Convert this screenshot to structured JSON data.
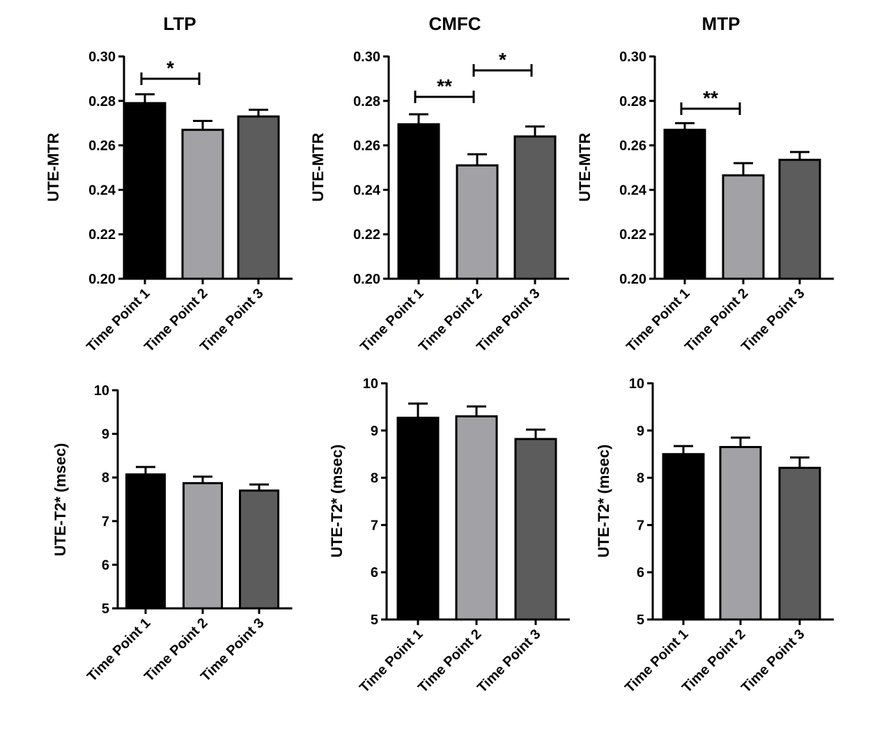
{
  "colors": {
    "bar1": "#000000",
    "bar2": "#a2a2a6",
    "bar3": "#5c5c5c"
  },
  "chart_data": [
    {
      "type": "bar",
      "title": "LTP",
      "ylabel": "UTE-MTR",
      "xlabel": "",
      "categories": [
        "Time Point 1",
        "Time Point 2",
        "Time Point 3"
      ],
      "values": [
        0.279,
        0.267,
        0.273
      ],
      "errors": [
        0.004,
        0.004,
        0.003
      ],
      "ylim": [
        0.2,
        0.3
      ],
      "yticks": [
        "0.20",
        "0.22",
        "0.24",
        "0.26",
        "0.28",
        "0.30"
      ],
      "significance": [
        {
          "from": 0,
          "to": 1,
          "label": "*"
        }
      ]
    },
    {
      "type": "bar",
      "title": "CMFC",
      "ylabel": "UTE-MTR",
      "xlabel": "",
      "categories": [
        "Time Point 1",
        "Time Point 2",
        "Time Point 3"
      ],
      "values": [
        0.2695,
        0.251,
        0.264
      ],
      "errors": [
        0.0045,
        0.005,
        0.0045
      ],
      "ylim": [
        0.2,
        0.3
      ],
      "yticks": [
        "0.20",
        "0.22",
        "0.24",
        "0.26",
        "0.28",
        "0.30"
      ],
      "significance": [
        {
          "from": 0,
          "to": 1,
          "label": "**"
        },
        {
          "from": 1,
          "to": 2,
          "label": "*"
        }
      ]
    },
    {
      "type": "bar",
      "title": "MTP",
      "ylabel": "UTE-MTR",
      "xlabel": "",
      "categories": [
        "Time Point 1",
        "Time Point 2",
        "Time Point 3"
      ],
      "values": [
        0.267,
        0.2465,
        0.2535
      ],
      "errors": [
        0.003,
        0.0055,
        0.0035
      ],
      "ylim": [
        0.2,
        0.3
      ],
      "yticks": [
        "0.20",
        "0.22",
        "0.24",
        "0.26",
        "0.28",
        "0.30"
      ],
      "significance": [
        {
          "from": 0,
          "to": 1,
          "label": "**"
        }
      ]
    },
    {
      "type": "bar",
      "title": "",
      "ylabel": "UTE-T2* (msec)",
      "xlabel": "",
      "categories": [
        "Time Point 1",
        "Time Point 2",
        "Time Point 3"
      ],
      "values": [
        8.07,
        7.87,
        7.7
      ],
      "errors": [
        0.17,
        0.15,
        0.14
      ],
      "ylim": [
        5,
        10
      ],
      "yticks": [
        "5",
        "6",
        "7",
        "8",
        "9",
        "10"
      ],
      "significance": []
    },
    {
      "type": "bar",
      "title": "",
      "ylabel": "UTE-T2* (msec)",
      "xlabel": "",
      "categories": [
        "Time Point 1",
        "Time Point 2",
        "Time Point 3"
      ],
      "values": [
        9.27,
        9.3,
        8.82
      ],
      "errors": [
        0.3,
        0.21,
        0.2
      ],
      "ylim": [
        5,
        10
      ],
      "yticks": [
        "5",
        "6",
        "7",
        "8",
        "9",
        "10"
      ],
      "significance": []
    },
    {
      "type": "bar",
      "title": "",
      "ylabel": "UTE-T2* (msec)",
      "xlabel": "",
      "categories": [
        "Time Point 1",
        "Time Point 2",
        "Time Point 3"
      ],
      "values": [
        8.5,
        8.65,
        8.21
      ],
      "errors": [
        0.17,
        0.2,
        0.22
      ],
      "ylim": [
        5,
        10
      ],
      "yticks": [
        "5",
        "6",
        "7",
        "8",
        "9",
        "10"
      ],
      "significance": []
    }
  ]
}
